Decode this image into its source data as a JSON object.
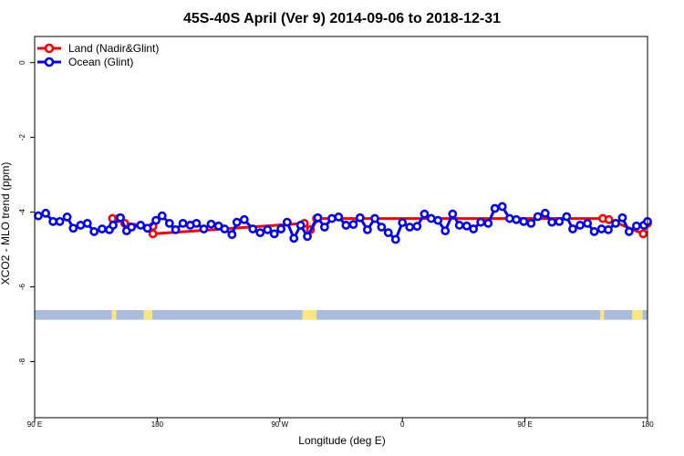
{
  "chart_data": {
    "type": "line",
    "title": "45S-40S April (Ver 9)   2014-09-06 to 2018-12-31",
    "xlabel": "Longitude (deg E)",
    "ylabel": "XCO2 - MLO trend (ppm)",
    "xlim": [
      0,
      100
    ],
    "ylim": [
      -9.5,
      0.7
    ],
    "xticks": [
      {
        "value": 0,
        "label": "90 E"
      },
      {
        "value": 20,
        "label": "180"
      },
      {
        "value": 40,
        "label": "90 W"
      },
      {
        "value": 60,
        "label": "0"
      },
      {
        "value": 80,
        "label": "90 E"
      },
      {
        "value": 100,
        "label": "180"
      }
    ],
    "yticks": [
      {
        "value": 0,
        "label": "0"
      },
      {
        "value": -2,
        "label": "-2"
      },
      {
        "value": -4,
        "label": "-4"
      },
      {
        "value": -6,
        "label": "-6"
      },
      {
        "value": -8,
        "label": "-8"
      }
    ],
    "legend": {
      "position": "top-left",
      "entries": [
        {
          "label": "Land (Nadir&Glint)",
          "color": "#ff0000"
        },
        {
          "label": "Ocean (Glint)",
          "color": "#0000ff"
        }
      ]
    },
    "series": [
      {
        "name": "Land (Nadir&Glint)",
        "color": "#ff0000",
        "points": [
          [
            12.7,
            -4.17
          ],
          [
            13.7,
            -4.17
          ],
          [
            14.7,
            -4.3
          ],
          [
            19.3,
            -4.38
          ],
          [
            19.3,
            -4.58
          ],
          [
            44.0,
            -4.3
          ],
          [
            45.0,
            -4.47
          ],
          [
            46.0,
            -4.17
          ],
          [
            92.7,
            -4.17
          ],
          [
            93.7,
            -4.2
          ],
          [
            99.3,
            -4.58
          ],
          [
            100.0,
            -4.3
          ]
        ]
      },
      {
        "name": "Ocean (Glint)",
        "color": "#0000ff",
        "points": [
          [
            0.6,
            -4.1
          ],
          [
            1.8,
            -4.03
          ],
          [
            3.0,
            -4.25
          ],
          [
            4.1,
            -4.25
          ],
          [
            5.3,
            -4.13
          ],
          [
            6.3,
            -4.43
          ],
          [
            7.5,
            -4.35
          ],
          [
            8.6,
            -4.3
          ],
          [
            9.7,
            -4.52
          ],
          [
            11.0,
            -4.45
          ],
          [
            12.2,
            -4.47
          ],
          [
            12.8,
            -4.35
          ],
          [
            14.0,
            -4.15
          ],
          [
            15.0,
            -4.5
          ],
          [
            15.8,
            -4.4
          ],
          [
            17.3,
            -4.35
          ],
          [
            18.4,
            -4.43
          ],
          [
            19.8,
            -4.22
          ],
          [
            20.8,
            -4.1
          ],
          [
            22.0,
            -4.3
          ],
          [
            23.0,
            -4.47
          ],
          [
            24.2,
            -4.3
          ],
          [
            25.4,
            -4.35
          ],
          [
            26.4,
            -4.3
          ],
          [
            27.6,
            -4.45
          ],
          [
            28.8,
            -4.32
          ],
          [
            30.0,
            -4.37
          ],
          [
            31.0,
            -4.45
          ],
          [
            32.2,
            -4.6
          ],
          [
            33.0,
            -4.27
          ],
          [
            34.2,
            -4.2
          ],
          [
            35.6,
            -4.45
          ],
          [
            36.8,
            -4.55
          ],
          [
            38.0,
            -4.47
          ],
          [
            39.1,
            -4.58
          ],
          [
            40.2,
            -4.45
          ],
          [
            41.2,
            -4.27
          ],
          [
            42.3,
            -4.7
          ],
          [
            43.4,
            -4.35
          ],
          [
            44.5,
            -4.65
          ],
          [
            46.2,
            -4.15
          ],
          [
            47.3,
            -4.4
          ],
          [
            48.5,
            -4.17
          ],
          [
            49.6,
            -4.13
          ],
          [
            50.8,
            -4.35
          ],
          [
            52.0,
            -4.33
          ],
          [
            53.1,
            -4.15
          ],
          [
            54.3,
            -4.47
          ],
          [
            55.5,
            -4.17
          ],
          [
            56.6,
            -4.4
          ],
          [
            57.7,
            -4.55
          ],
          [
            58.9,
            -4.73
          ],
          [
            60.0,
            -4.28
          ],
          [
            61.2,
            -4.4
          ],
          [
            62.4,
            -4.38
          ],
          [
            63.6,
            -4.05
          ],
          [
            64.7,
            -4.17
          ],
          [
            65.8,
            -4.22
          ],
          [
            67.0,
            -4.5
          ],
          [
            68.2,
            -4.05
          ],
          [
            69.3,
            -4.35
          ],
          [
            70.5,
            -4.37
          ],
          [
            71.6,
            -4.45
          ],
          [
            72.8,
            -4.27
          ],
          [
            74.0,
            -4.3
          ],
          [
            75.1,
            -3.9
          ],
          [
            76.3,
            -3.85
          ],
          [
            77.5,
            -4.17
          ],
          [
            78.6,
            -4.2
          ],
          [
            79.8,
            -4.25
          ],
          [
            81.0,
            -4.3
          ],
          [
            82.1,
            -4.12
          ],
          [
            83.3,
            -4.03
          ],
          [
            84.4,
            -4.27
          ],
          [
            85.6,
            -4.25
          ],
          [
            86.8,
            -4.12
          ],
          [
            87.8,
            -4.45
          ],
          [
            89.0,
            -4.35
          ],
          [
            90.2,
            -4.3
          ],
          [
            91.3,
            -4.52
          ],
          [
            92.5,
            -4.45
          ],
          [
            93.6,
            -4.47
          ],
          [
            94.8,
            -4.3
          ],
          [
            95.9,
            -4.15
          ],
          [
            97.0,
            -4.52
          ],
          [
            98.2,
            -4.37
          ],
          [
            99.4,
            -4.35
          ],
          [
            100.0,
            -4.25
          ]
        ]
      }
    ],
    "land_mask_strip": {
      "y_range": [
        -6.88,
        -6.62
      ],
      "base_color": "#a9bede",
      "land_color": "#ffe680",
      "land_segments": [
        [
          12.6,
          13.3
        ],
        [
          17.8,
          19.2
        ],
        [
          43.7,
          46.0
        ],
        [
          92.3,
          92.9
        ],
        [
          97.5,
          99.2
        ]
      ]
    }
  }
}
